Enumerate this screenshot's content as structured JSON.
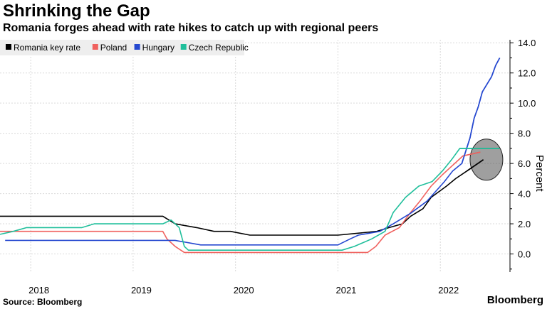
{
  "chart_data": {
    "type": "line",
    "title": "Shrinking the Gap",
    "subtitle": "Romania forges ahead with rate hikes to catch up with regional peers",
    "ylabel": "Percent",
    "ylim": [
      -1.2,
      14.2
    ],
    "yticks": [
      "14.0",
      "12.0",
      "10.0",
      "8.0",
      "6.0",
      "4.0",
      "2.0",
      "0.0"
    ],
    "ytick_values": [
      14,
      12,
      10,
      8,
      6,
      4,
      2,
      0
    ],
    "xtick_labels": [
      "2018",
      "2019",
      "2020",
      "2021",
      "2022"
    ],
    "xtick_positions": [
      2018.0,
      2019.0,
      2020.0,
      2021.0,
      2022.0
    ],
    "xlim": [
      2017.62,
      2022.6
    ],
    "gridlines_x": [
      2017.92,
      2018.92,
      2019.92,
      2020.92,
      2021.92
    ],
    "series": [
      {
        "name": "Romania key rate",
        "color": "#000000",
        "points": [
          [
            2017.62,
            2.5
          ],
          [
            2019.21,
            2.5
          ],
          [
            2019.33,
            2.0
          ],
          [
            2019.54,
            1.75
          ],
          [
            2019.71,
            1.5
          ],
          [
            2019.87,
            1.5
          ],
          [
            2020.06,
            1.25
          ],
          [
            2020.92,
            1.25
          ],
          [
            2021.3,
            1.5
          ],
          [
            2021.42,
            1.75
          ],
          [
            2021.55,
            2.0
          ],
          [
            2021.63,
            2.5
          ],
          [
            2021.75,
            3.0
          ],
          [
            2021.83,
            3.75
          ],
          [
            2021.98,
            4.5
          ],
          [
            2022.07,
            5.0
          ],
          [
            2022.18,
            5.5
          ],
          [
            2022.34,
            6.25
          ]
        ]
      },
      {
        "name": "Poland",
        "color": "#f0625f",
        "points": [
          [
            2017.62,
            1.5
          ],
          [
            2019.21,
            1.5
          ],
          [
            2019.25,
            1.0
          ],
          [
            2019.33,
            0.5
          ],
          [
            2019.42,
            0.1
          ],
          [
            2021.21,
            0.1
          ],
          [
            2021.29,
            0.5
          ],
          [
            2021.38,
            1.25
          ],
          [
            2021.52,
            1.75
          ],
          [
            2021.63,
            2.75
          ],
          [
            2021.72,
            3.5
          ],
          [
            2021.83,
            4.5
          ],
          [
            2021.94,
            5.25
          ],
          [
            2022.06,
            6.0
          ],
          [
            2022.14,
            6.5
          ],
          [
            2022.31,
            6.75
          ]
        ]
      },
      {
        "name": "Hungary",
        "color": "#2548d0",
        "points": [
          [
            2017.67,
            0.9
          ],
          [
            2019.33,
            0.9
          ],
          [
            2019.58,
            0.6
          ],
          [
            2020.92,
            0.6
          ],
          [
            2021.04,
            1.0
          ],
          [
            2021.12,
            1.25
          ],
          [
            2021.33,
            1.5
          ],
          [
            2021.46,
            2.0
          ],
          [
            2021.63,
            2.7
          ],
          [
            2021.79,
            3.5
          ],
          [
            2021.96,
            4.8
          ],
          [
            2022.04,
            5.5
          ],
          [
            2022.13,
            6.0
          ],
          [
            2022.21,
            7.7
          ],
          [
            2022.25,
            9.0
          ],
          [
            2022.29,
            9.75
          ],
          [
            2022.33,
            10.75
          ],
          [
            2022.42,
            11.75
          ],
          [
            2022.46,
            12.5
          ],
          [
            2022.5,
            13.0
          ]
        ]
      },
      {
        "name": "Czech Republic",
        "color": "#1fbf9b",
        "points": [
          [
            2017.62,
            1.3
          ],
          [
            2017.75,
            1.5
          ],
          [
            2017.88,
            1.75
          ],
          [
            2018.42,
            1.75
          ],
          [
            2018.54,
            2.0
          ],
          [
            2019.21,
            2.0
          ],
          [
            2019.29,
            2.25
          ],
          [
            2019.37,
            1.75
          ],
          [
            2019.42,
            0.5
          ],
          [
            2019.46,
            0.25
          ],
          [
            2020.96,
            0.25
          ],
          [
            2021.08,
            0.5
          ],
          [
            2021.25,
            1.0
          ],
          [
            2021.38,
            1.5
          ],
          [
            2021.46,
            2.75
          ],
          [
            2021.58,
            3.75
          ],
          [
            2021.71,
            4.5
          ],
          [
            2021.84,
            4.8
          ],
          [
            2021.94,
            5.5
          ],
          [
            2022.03,
            6.25
          ],
          [
            2022.11,
            7.0
          ],
          [
            2022.5,
            7.0
          ]
        ]
      }
    ],
    "annotation": "highlight circle around latest values"
  },
  "legend": {
    "items": [
      {
        "label": "Romania key rate",
        "color": "#000000"
      },
      {
        "label": "Poland",
        "color": "#f0625f"
      },
      {
        "label": "Hungary",
        "color": "#2548d0"
      },
      {
        "label": "Czech Republic",
        "color": "#1fbf9b"
      }
    ]
  },
  "footer": {
    "source_label": "Source: Bloomberg",
    "brand": "Bloomberg"
  }
}
